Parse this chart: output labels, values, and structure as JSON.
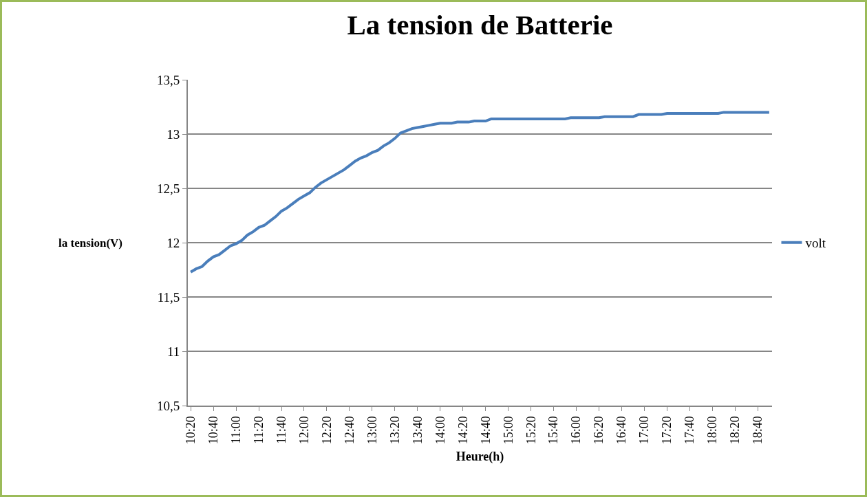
{
  "chart_data": {
    "type": "line",
    "title": "La tension de Batterie",
    "xlabel": "Heure(h)",
    "ylabel": "la tension(V)",
    "categories": [
      "10:20",
      null,
      null,
      null,
      "10:40",
      null,
      null,
      null,
      "11:00",
      null,
      null,
      null,
      "11:20",
      null,
      null,
      null,
      "11:40",
      null,
      null,
      null,
      "12:00",
      null,
      null,
      null,
      "12:20",
      null,
      null,
      null,
      "12:40",
      null,
      null,
      null,
      "13:00",
      null,
      null,
      null,
      "13:20",
      null,
      null,
      null,
      "13:40",
      null,
      null,
      null,
      "14:00",
      null,
      null,
      null,
      "14:20",
      null,
      null,
      null,
      "14:40",
      null,
      null,
      null,
      "15:00",
      null,
      null,
      null,
      "15:20",
      null,
      null,
      null,
      "15:40",
      null,
      null,
      null,
      "16:00",
      null,
      null,
      null,
      "16:20",
      null,
      null,
      null,
      "16:40",
      null,
      null,
      null,
      "17:00",
      null,
      null,
      null,
      "17:20",
      null,
      null,
      null,
      "17:40",
      null,
      null,
      null,
      "18:00",
      null,
      null,
      null,
      "18:20",
      null,
      null,
      null,
      "18:40",
      null,
      null
    ],
    "series": [
      {
        "name": "volt",
        "color": "#4a7ebb",
        "values": [
          11.73,
          11.76,
          11.78,
          11.83,
          11.87,
          11.89,
          11.93,
          11.97,
          11.99,
          12.02,
          12.07,
          12.1,
          12.14,
          12.16,
          12.2,
          12.24,
          12.29,
          12.32,
          12.36,
          12.4,
          12.43,
          12.46,
          12.51,
          12.55,
          12.58,
          12.61,
          12.64,
          12.67,
          12.71,
          12.75,
          12.78,
          12.8,
          12.83,
          12.85,
          12.89,
          12.92,
          12.96,
          13.01,
          13.03,
          13.05,
          13.06,
          13.07,
          13.08,
          13.09,
          13.1,
          13.1,
          13.1,
          13.11,
          13.11,
          13.11,
          13.12,
          13.12,
          13.12,
          13.14,
          13.14,
          13.14,
          13.14,
          13.14,
          13.14,
          13.14,
          13.14,
          13.14,
          13.14,
          13.14,
          13.14,
          13.14,
          13.14,
          13.15,
          13.15,
          13.15,
          13.15,
          13.15,
          13.15,
          13.16,
          13.16,
          13.16,
          13.16,
          13.16,
          13.16,
          13.18,
          13.18,
          13.18,
          13.18,
          13.18,
          13.19,
          13.19,
          13.19,
          13.19,
          13.19,
          13.19,
          13.19,
          13.19,
          13.19,
          13.19,
          13.2,
          13.2,
          13.2,
          13.2,
          13.2,
          13.2,
          13.2,
          13.2,
          13.2
        ]
      }
    ],
    "ylim": [
      10.5,
      13.5
    ],
    "yticks": [
      {
        "value": 10.5,
        "label": "10,5"
      },
      11,
      {
        "value": 11.5,
        "label": "11,5"
      },
      12,
      {
        "value": 12.5,
        "label": "12,5"
      },
      13,
      {
        "value": 13.5,
        "label": "13,5"
      }
    ],
    "grid": "y",
    "legend": "right",
    "marker": "none",
    "line_style": "solid"
  }
}
